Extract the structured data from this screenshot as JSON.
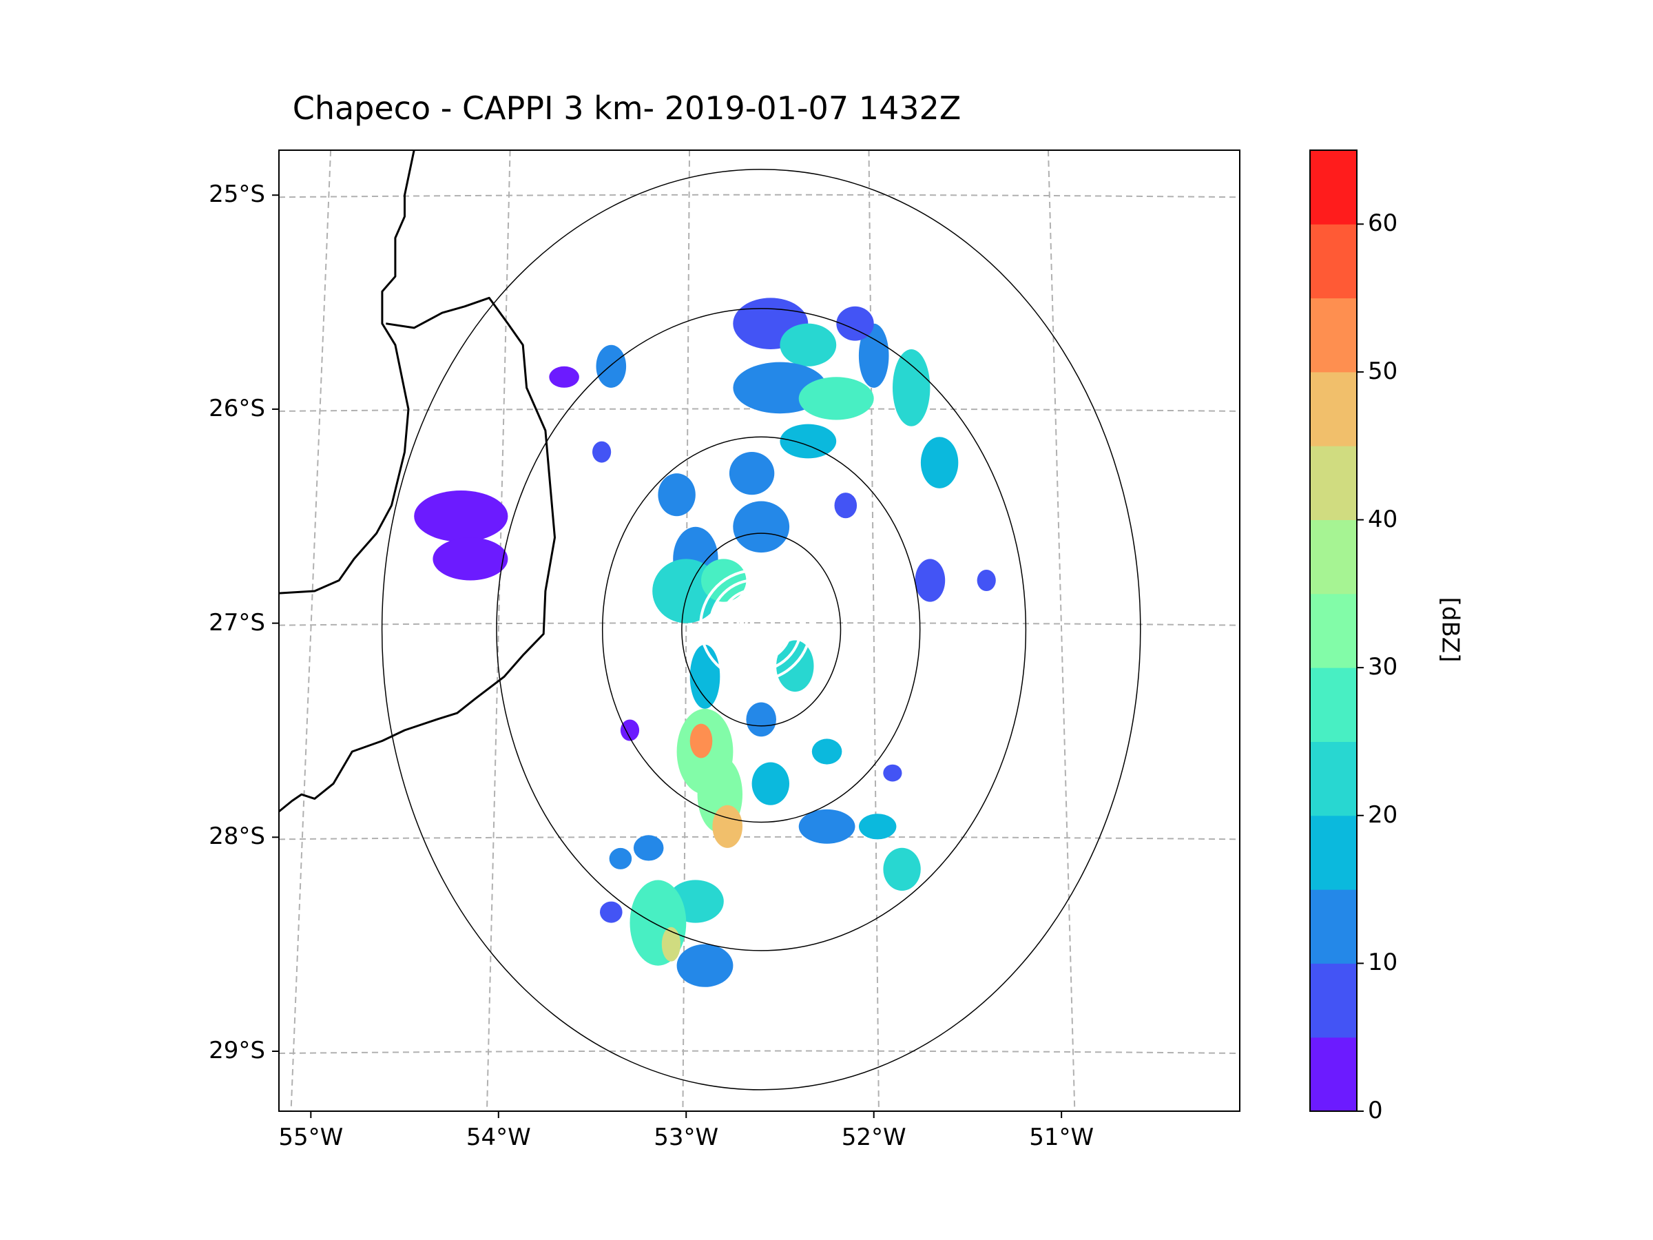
{
  "title": "Chapeco - CAPPI 3 km- 2019-01-07 1432Z",
  "map": {
    "lat_labels": [
      "25°S",
      "26°S",
      "27°S",
      "28°S",
      "29°S"
    ],
    "lon_labels": [
      "55°W",
      "54°W",
      "53°W",
      "52°W",
      "51°W"
    ],
    "lat_values": [
      -25,
      -26,
      -27,
      -28,
      -29
    ],
    "lon_values": [
      -55,
      -54,
      -53,
      -52,
      -51
    ],
    "extent": {
      "lon_min": -55.17,
      "lon_max": -50.05,
      "lat_min": -29.28,
      "lat_max": -24.79
    },
    "gridlines": "dashed gray",
    "radar_site": {
      "lon": -52.6,
      "lat": -27.03
    },
    "range_rings_deg": [
      0.45,
      0.9,
      1.5,
      2.15
    ],
    "grid_color": "#b0b0b0",
    "coast_color": "#000000",
    "ring_color": "#000000"
  },
  "colorbar": {
    "label": "[dBZ]",
    "tick_labels": [
      "0",
      "10",
      "20",
      "30",
      "40",
      "50",
      "60"
    ],
    "min": 0,
    "max": 65,
    "levels": [
      0,
      5,
      10,
      15,
      20,
      25,
      30,
      35,
      40,
      45,
      50,
      55,
      60,
      65
    ],
    "colors": [
      "#6c1bff",
      "#4354f5",
      "#2488e8",
      "#0bb9dd",
      "#28d7d1",
      "#48efc3",
      "#82fca8",
      "#a6f493",
      "#d0dc80",
      "#f1bf6b",
      "#fe8f50",
      "#ff5a35",
      "#ff1c1c"
    ]
  }
}
